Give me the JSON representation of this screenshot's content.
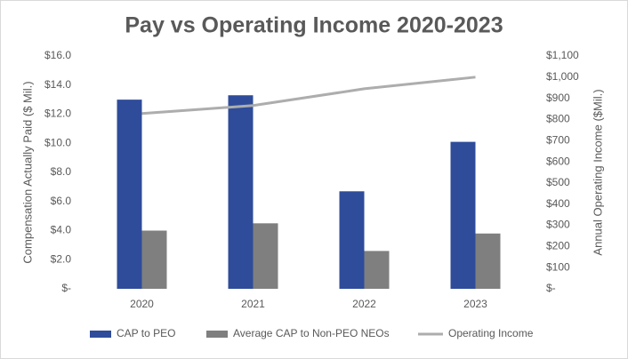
{
  "chart_data": {
    "type": "bar",
    "title": "Pay vs Operating Income 2020-2023",
    "y_label": "Compensation Actually Paid ($ Mil.)",
    "y2_label": "Annual Operating Income ($Mil.)",
    "categories": [
      "2020",
      "2021",
      "2022",
      "2023"
    ],
    "series": [
      {
        "name": "CAP to PEO",
        "color": "#2e4c9a",
        "type": "bar",
        "values": [
          13.0,
          13.3,
          6.7,
          10.1
        ]
      },
      {
        "name": "Average CAP to Non-PEO NEOs",
        "color": "#7f7f7f",
        "type": "bar",
        "values": [
          4.0,
          4.5,
          2.6,
          3.8
        ]
      },
      {
        "name": "Operating Income",
        "color": "#adadad",
        "type": "line",
        "axis": "y2",
        "values": [
          828,
          866,
          945,
          1000
        ]
      }
    ],
    "ylim": [
      0,
      16
    ],
    "yticks": [
      {
        "value": 0,
        "label": "$-"
      },
      {
        "value": 2,
        "label": "$2.0"
      },
      {
        "value": 4,
        "label": "$4.0"
      },
      {
        "value": 6,
        "label": "$6.0"
      },
      {
        "value": 8,
        "label": "$8.0"
      },
      {
        "value": 10,
        "label": "$10.0"
      },
      {
        "value": 12,
        "label": "$12.0"
      },
      {
        "value": 14,
        "label": "$14.0"
      },
      {
        "value": 16,
        "label": "$16.0"
      }
    ],
    "y2lim": [
      0,
      1100
    ],
    "y2ticks": [
      {
        "value": 0,
        "label": "$-"
      },
      {
        "value": 100,
        "label": "$100"
      },
      {
        "value": 200,
        "label": "$200"
      },
      {
        "value": 300,
        "label": "$300"
      },
      {
        "value": 400,
        "label": "$400"
      },
      {
        "value": 500,
        "label": "$500"
      },
      {
        "value": 600,
        "label": "$600"
      },
      {
        "value": 700,
        "label": "$700"
      },
      {
        "value": 800,
        "label": "$800"
      },
      {
        "value": 900,
        "label": "$900"
      },
      {
        "value": 1000,
        "label": "$1,000"
      },
      {
        "value": 1100,
        "label": "$1,100"
      }
    ],
    "grid": false,
    "legend": "bottom"
  }
}
